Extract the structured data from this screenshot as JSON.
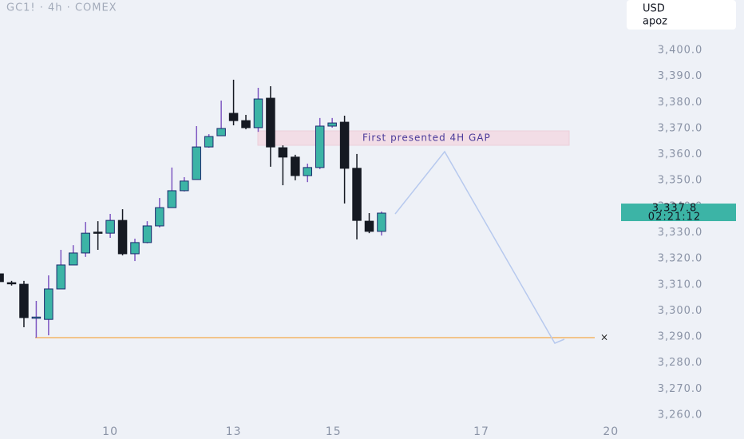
{
  "chart_data": {
    "type": "candlestick",
    "title": "GC1! · 4h · COMEX",
    "currency": "USD",
    "user": "apoz",
    "annotation": "First presented 4H GAP",
    "last_price": {
      "value": 3337.8,
      "label": "3,337.8"
    },
    "countdown": "02:21:12",
    "x": [
      0,
      1,
      2,
      3,
      4,
      5,
      6,
      7,
      8,
      9,
      10,
      11,
      12,
      13,
      14,
      15,
      16,
      17,
      18,
      19,
      20,
      21,
      22,
      23,
      24,
      25,
      26,
      27,
      28,
      29,
      30,
      31
    ],
    "open": [
      3314.2,
      3310.8,
      3310.2,
      3297.4,
      3296.7,
      3308.4,
      3317.6,
      3322.2,
      3330.2,
      3329.8,
      3334.7,
      3321.9,
      3326.2,
      3332.6,
      3339.6,
      3346.1,
      3350.4,
      3362.9,
      3367.2,
      3375.8,
      3373.0,
      3370.3,
      3381.6,
      3362.6,
      3359.0,
      3351.9,
      3355.0,
      3370.9,
      3372.4,
      3354.7,
      3334.4,
      3330.5
    ],
    "high": [
      3316.0,
      3311.5,
      3311.5,
      3303.8,
      3313.6,
      3323.4,
      3325.2,
      3334.1,
      3334.4,
      3337.2,
      3339.0,
      3327.7,
      3334.4,
      3343.3,
      3355.0,
      3351.3,
      3370.9,
      3367.8,
      3380.7,
      3388.7,
      3375.2,
      3385.6,
      3386.2,
      3363.5,
      3359.9,
      3356.5,
      3374.0,
      3374.0,
      3374.9,
      3360.2,
      3337.5,
      3338.1
    ],
    "low": [
      3310.6,
      3309.7,
      3293.7,
      3289.7,
      3290.6,
      3308.4,
      3317.6,
      3320.7,
      3323.4,
      3328.0,
      3321.3,
      3319.1,
      3325.9,
      3332.0,
      3339.6,
      3345.8,
      3350.4,
      3362.6,
      3367.2,
      3371.2,
      3369.7,
      3368.7,
      3355.3,
      3348.2,
      3350.1,
      3349.4,
      3354.4,
      3370.3,
      3341.2,
      3327.4,
      3329.8,
      3328.9
    ],
    "close": [
      3311.2,
      3310.6,
      3297.4,
      3297.6,
      3308.4,
      3317.6,
      3322.2,
      3329.8,
      3330.0,
      3334.7,
      3321.9,
      3326.2,
      3332.6,
      3339.6,
      3346.1,
      3349.8,
      3362.9,
      3366.9,
      3370.0,
      3373.0,
      3370.3,
      3381.3,
      3362.9,
      3359.0,
      3351.9,
      3355.0,
      3370.9,
      3372.1,
      3354.7,
      3334.7,
      3330.5,
      3337.5
    ],
    "up_color": "#3cb4a6",
    "down_color": "#151922",
    "up_wick_color": "#7e57c2",
    "xlim": [
      0.06,
      50.23
    ],
    "xticks": [
      {
        "value": 9,
        "label": "10"
      },
      {
        "value": 19,
        "label": "13"
      },
      {
        "value": 27.1,
        "label": "15"
      },
      {
        "value": 39.1,
        "label": "17"
      },
      {
        "value": 49.6,
        "label": "20"
      }
    ],
    "ylim": [
      3250.8,
      3419.3
    ],
    "yticks": [
      {
        "value": 3260,
        "label": "3,260.0"
      },
      {
        "value": 3270,
        "label": "3,270.0"
      },
      {
        "value": 3280,
        "label": "3,280.0"
      },
      {
        "value": 3290,
        "label": "3,290.0"
      },
      {
        "value": 3300,
        "label": "3,300.0"
      },
      {
        "value": 3310,
        "label": "3,310.0"
      },
      {
        "value": 3320,
        "label": "3,320.0"
      },
      {
        "value": 3330,
        "label": "3,330.0"
      },
      {
        "value": 3340,
        "label": "3,340.0"
      },
      {
        "value": 3350,
        "label": "3,350.0"
      },
      {
        "value": 3360,
        "label": "3,360.0"
      },
      {
        "value": 3370,
        "label": "3,370.0"
      },
      {
        "value": 3380,
        "label": "3,380.0"
      },
      {
        "value": 3390,
        "label": "3,390.0"
      },
      {
        "value": 3400,
        "label": "3,400.0"
      }
    ]
  }
}
